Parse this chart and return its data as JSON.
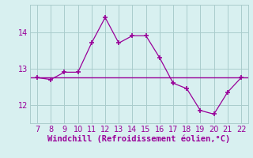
{
  "x": [
    7,
    8,
    9,
    10,
    11,
    12,
    13,
    14,
    15,
    16,
    17,
    18,
    19,
    20,
    21,
    22
  ],
  "y": [
    12.75,
    12.7,
    12.9,
    12.9,
    13.7,
    14.4,
    13.7,
    13.9,
    13.9,
    13.3,
    12.6,
    12.45,
    11.85,
    11.75,
    12.35,
    12.75
  ],
  "hline_y": 12.75,
  "xlim": [
    6.5,
    22.5
  ],
  "ylim": [
    11.5,
    14.75
  ],
  "yticks": [
    12,
    13,
    14
  ],
  "xticks": [
    7,
    8,
    9,
    10,
    11,
    12,
    13,
    14,
    15,
    16,
    17,
    18,
    19,
    20,
    21,
    22
  ],
  "xlabel": "Windchill (Refroidissement éolien,°C)",
  "line_color": "#990099",
  "marker_color": "#990099",
  "bg_color": "#d8f0f0",
  "grid_color": "#aacccc",
  "tick_label_color": "#990099",
  "xlabel_color": "#990099",
  "tick_font_size": 7,
  "xlabel_font_size": 7.5
}
